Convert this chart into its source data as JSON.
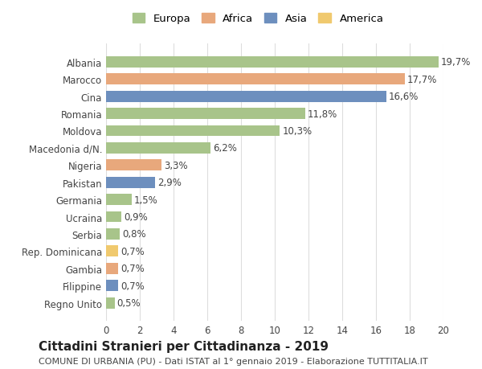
{
  "countries": [
    "Albania",
    "Marocco",
    "Cina",
    "Romania",
    "Moldova",
    "Macedonia d/N.",
    "Nigeria",
    "Pakistan",
    "Germania",
    "Ucraina",
    "Serbia",
    "Rep. Dominicana",
    "Gambia",
    "Filippine",
    "Regno Unito"
  ],
  "values": [
    19.7,
    17.7,
    16.6,
    11.8,
    10.3,
    6.2,
    3.3,
    2.9,
    1.5,
    0.9,
    0.8,
    0.7,
    0.7,
    0.7,
    0.5
  ],
  "labels": [
    "19,7%",
    "17,7%",
    "16,6%",
    "11,8%",
    "10,3%",
    "6,2%",
    "3,3%",
    "2,9%",
    "1,5%",
    "0,9%",
    "0,8%",
    "0,7%",
    "0,7%",
    "0,7%",
    "0,5%"
  ],
  "categories": [
    "Europa",
    "Africa",
    "Asia",
    "Europa",
    "Europa",
    "Europa",
    "Africa",
    "Asia",
    "Europa",
    "Europa",
    "Europa",
    "America",
    "Africa",
    "Asia",
    "Europa"
  ],
  "colors": {
    "Europa": "#a8c48a",
    "Africa": "#e8a87c",
    "Asia": "#6d8fbe",
    "America": "#f0c96e"
  },
  "legend_order": [
    "Europa",
    "Africa",
    "Asia",
    "America"
  ],
  "title": "Cittadini Stranieri per Cittadinanza - 2019",
  "subtitle": "COMUNE DI URBANIA (PU) - Dati ISTAT al 1° gennaio 2019 - Elaborazione TUTTITALIA.IT",
  "xlim": [
    0,
    20
  ],
  "xticks": [
    0,
    2,
    4,
    6,
    8,
    10,
    12,
    14,
    16,
    18,
    20
  ],
  "background_color": "#ffffff",
  "grid_color": "#dddddd",
  "bar_height": 0.65,
  "label_fontsize": 8.5,
  "tick_fontsize": 8.5,
  "title_fontsize": 11,
  "subtitle_fontsize": 8
}
